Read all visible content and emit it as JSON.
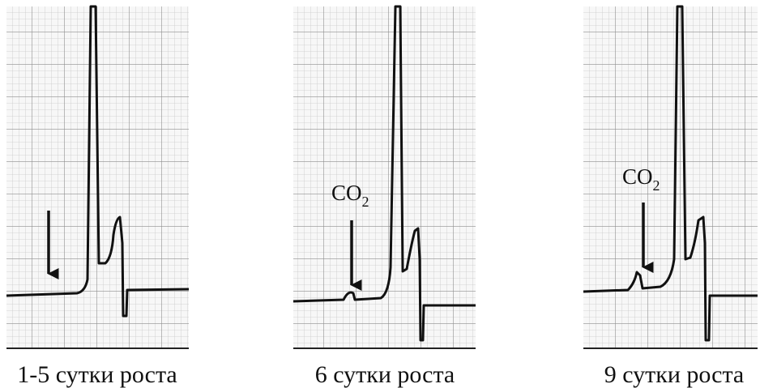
{
  "panels": [
    {
      "caption": "1-5 сутки роста"
    },
    {
      "caption": "6 сутки роста",
      "annotation": {
        "text": "CO",
        "subscript": "2"
      }
    },
    {
      "caption": "9 сутки роста",
      "annotation": {
        "text": "CO",
        "subscript": "2"
      }
    }
  ]
}
